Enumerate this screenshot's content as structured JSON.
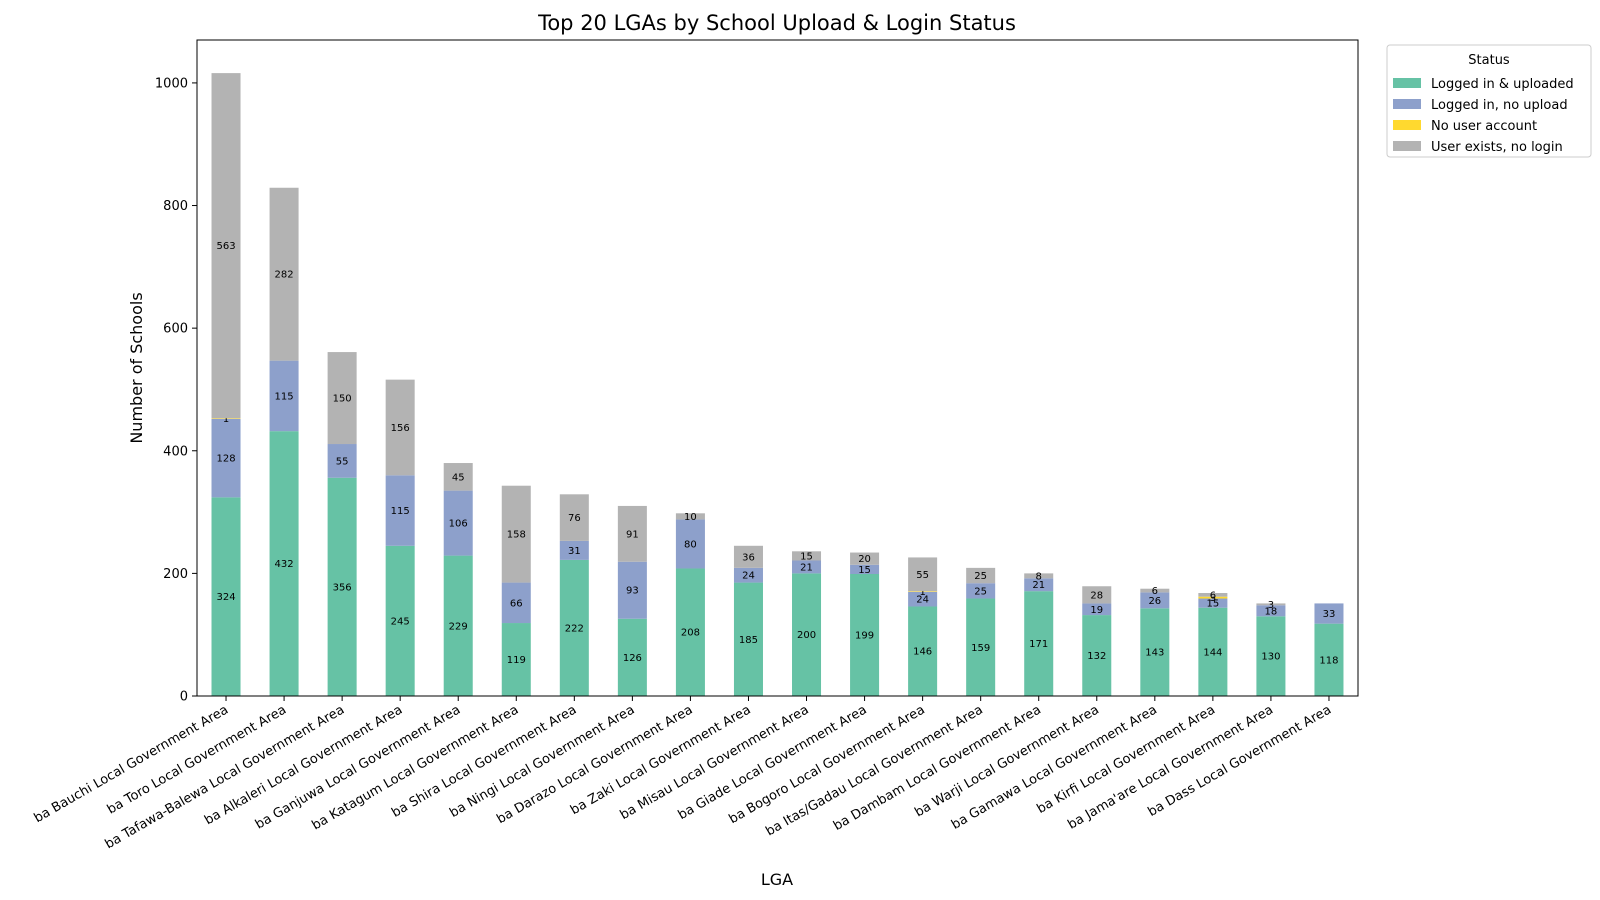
{
  "chart_data": {
    "type": "bar",
    "stacked": true,
    "title": "Top 20 LGAs by School Upload & Login Status",
    "xlabel": "LGA",
    "ylabel": "Number of Schools",
    "ylim": [
      0,
      1070
    ],
    "yticks": [
      0,
      200,
      400,
      600,
      800,
      1000
    ],
    "categories": [
      "ba Bauchi Local Government Area",
      "ba Toro Local Government Area",
      "ba Tafawa-Balewa Local Government Area",
      "ba Alkaleri Local Government Area",
      "ba Ganjuwa Local Government Area",
      "ba Katagum Local Government Area",
      "ba Shira Local Government Area",
      "ba Ningi Local Government Area",
      "ba Darazo Local Government Area",
      "ba Zaki Local Government Area",
      "ba Misau Local Government Area",
      "ba Giade Local Government Area",
      "ba Bogoro Local Government Area",
      "ba Itas/Gadau Local Government Area",
      "ba Dambam Local Government Area",
      "ba Warji Local Government Area",
      "ba Gamawa Local Government Area",
      "ba Kirfi Local Government Area",
      "ba Jama'are Local Government Area",
      "ba Dass Local Government Area"
    ],
    "series": [
      {
        "name": "Logged in & uploaded",
        "color": "#66c2a5",
        "values": [
          324,
          432,
          356,
          245,
          229,
          119,
          222,
          126,
          208,
          185,
          200,
          199,
          146,
          159,
          171,
          132,
          143,
          144,
          130,
          118
        ]
      },
      {
        "name": "Logged in, no upload",
        "color": "#8da0cb",
        "values": [
          128,
          115,
          55,
          115,
          106,
          66,
          31,
          93,
          80,
          24,
          21,
          15,
          24,
          25,
          21,
          19,
          26,
          15,
          18,
          33
        ]
      },
      {
        "name": "No user account",
        "color": "#ffd92f",
        "values": [
          1,
          0,
          0,
          0,
          0,
          0,
          0,
          0,
          0,
          0,
          0,
          0,
          1,
          0,
          0,
          0,
          0,
          3,
          0,
          0
        ]
      },
      {
        "name": "User exists, no login",
        "color": "#b3b3b3",
        "values": [
          563,
          282,
          150,
          156,
          45,
          158,
          76,
          91,
          10,
          36,
          15,
          20,
          55,
          25,
          8,
          28,
          6,
          6,
          3,
          0
        ]
      }
    ],
    "legend": {
      "title": "Status",
      "placement": "outside-top-right"
    },
    "grid": false
  }
}
